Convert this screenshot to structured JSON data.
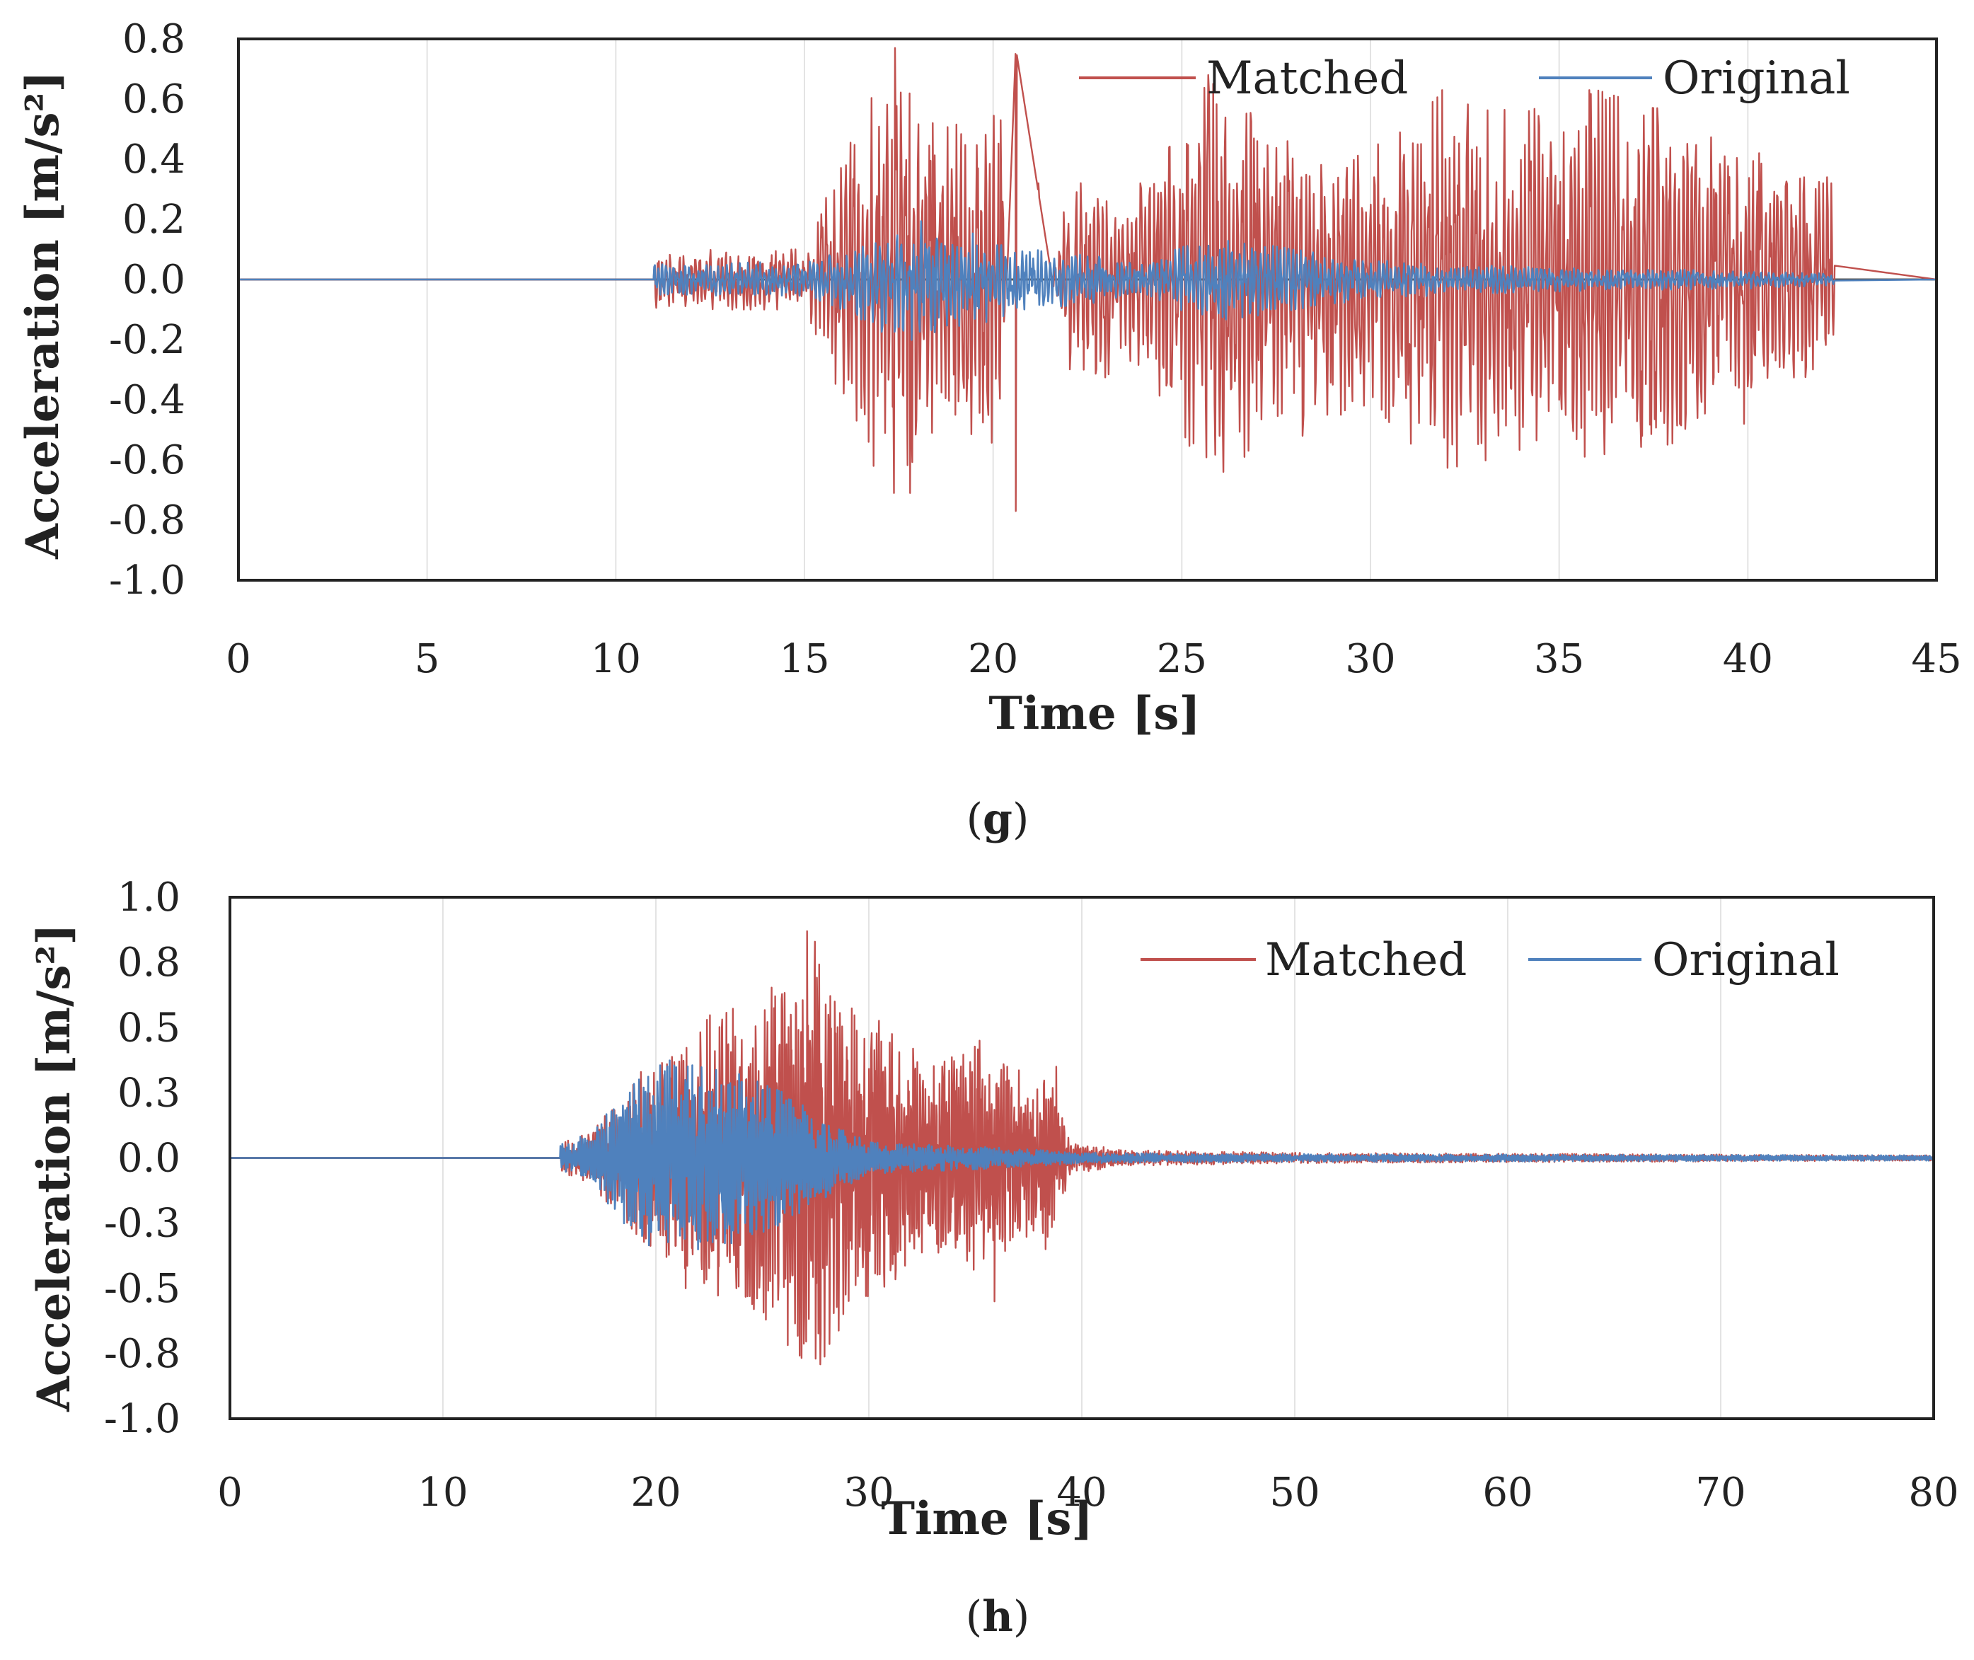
{
  "figure": {
    "panels": [
      "(g)",
      "(h)"
    ]
  },
  "chart_data": [
    {
      "id": "g",
      "type": "line",
      "panel_label": "(g)",
      "panel_letter": "g",
      "title": "",
      "xlabel": "Time [s]",
      "ylabel": "Acceleration [m/s²]",
      "xlim": [
        0,
        45
      ],
      "ylim": [
        -1.0,
        0.8
      ],
      "xticks": [
        0,
        5,
        10,
        15,
        20,
        25,
        30,
        35,
        40,
        45
      ],
      "xtick_labels": [
        "0",
        "5",
        "10",
        "15",
        "20",
        "25",
        "30",
        "35",
        "40",
        "45"
      ],
      "yticks": [
        0.8,
        0.6,
        0.4,
        0.2,
        0.0,
        -0.2,
        -0.4,
        -0.6,
        -0.8,
        -1.0
      ],
      "ytick_labels": [
        "0.8",
        "0.6",
        "0.4",
        "0.2",
        "0.0",
        "-0.2",
        "-0.4",
        "-0.6",
        "-0.8",
        "-1.0"
      ],
      "grid": "vertical",
      "legend_position": "top-right",
      "signal_start": 11,
      "signal_end": 42.3,
      "series": [
        {
          "name": "Matched",
          "color": "#c0504d",
          "envelope": [
            [
              11,
              0.1
            ],
            [
              15,
              0.1
            ],
            [
              16,
              0.4
            ],
            [
              17.4,
              0.77
            ],
            [
              18.5,
              0.5
            ],
            [
              20.2,
              0.55
            ],
            [
              20.6,
              -0.77
            ],
            [
              22,
              0.35
            ],
            [
              24,
              0.3
            ],
            [
              25.8,
              0.68
            ],
            [
              28,
              0.45
            ],
            [
              30,
              0.45
            ],
            [
              32,
              0.63
            ],
            [
              35,
              0.55
            ],
            [
              36,
              0.63
            ],
            [
              38,
              0.55
            ],
            [
              40,
              0.4
            ],
            [
              42,
              0.32
            ]
          ],
          "peaks": [
            {
              "t": 16.1,
              "v": 0.38
            },
            {
              "t": 16.7,
              "v": -0.54
            },
            {
              "t": 17.4,
              "v": 0.77
            },
            {
              "t": 17.8,
              "v": -0.71
            },
            {
              "t": 18.4,
              "v": 0.52
            },
            {
              "t": 19.0,
              "v": -0.45
            },
            {
              "t": 19.6,
              "v": 0.37
            },
            {
              "t": 20.2,
              "v": 0.53
            },
            {
              "t": 20.6,
              "v": -0.77
            },
            {
              "t": 21.2,
              "v": 0.32
            },
            {
              "t": 22.4,
              "v": -0.3
            },
            {
              "t": 23.9,
              "v": 0.32
            },
            {
              "t": 24.7,
              "v": -0.35
            },
            {
              "t": 25.7,
              "v": 0.68
            },
            {
              "t": 26.0,
              "v": -0.52
            },
            {
              "t": 27.0,
              "v": 0.46
            },
            {
              "t": 27.8,
              "v": 0.46
            },
            {
              "t": 28.2,
              "v": -0.52
            },
            {
              "t": 29.0,
              "v": -0.35
            },
            {
              "t": 30.2,
              "v": 0.45
            },
            {
              "t": 31.0,
              "v": -0.35
            },
            {
              "t": 31.9,
              "v": 0.63
            },
            {
              "t": 32.4,
              "v": -0.45
            },
            {
              "t": 33.5,
              "v": -0.43
            },
            {
              "t": 34.2,
              "v": 0.56
            },
            {
              "t": 35.0,
              "v": -0.4
            },
            {
              "t": 35.8,
              "v": 0.63
            },
            {
              "t": 37.2,
              "v": -0.52
            },
            {
              "t": 37.6,
              "v": 0.57
            },
            {
              "t": 38.2,
              "v": -0.48
            },
            {
              "t": 39.1,
              "v": 0.3
            },
            {
              "t": 39.9,
              "v": -0.48
            },
            {
              "t": 40.3,
              "v": 0.42
            },
            {
              "t": 41.0,
              "v": 0.31
            },
            {
              "t": 42.1,
              "v": 0.34
            }
          ]
        },
        {
          "name": "Original",
          "color": "#4f81bd",
          "envelope": [
            [
              11,
              0.05
            ],
            [
              15,
              0.06
            ],
            [
              16,
              0.1
            ],
            [
              17.5,
              0.21
            ],
            [
              19,
              0.17
            ],
            [
              21,
              0.1
            ],
            [
              24,
              0.06
            ],
            [
              25.7,
              0.14
            ],
            [
              27,
              0.12
            ],
            [
              29,
              0.08
            ],
            [
              32,
              0.05
            ],
            [
              35,
              0.04
            ],
            [
              40,
              0.03
            ],
            [
              42,
              0.02
            ]
          ],
          "peaks": []
        }
      ]
    },
    {
      "id": "h",
      "type": "line",
      "panel_label": "(h)",
      "panel_letter": "h",
      "title": "",
      "xlabel": "Time [s]",
      "ylabel": "Acceleration [m/s²]",
      "xlim": [
        0,
        80
      ],
      "ylim": [
        -1.0,
        1.0
      ],
      "xticks": [
        0,
        10,
        20,
        30,
        40,
        50,
        60,
        70,
        80
      ],
      "xtick_labels": [
        "0",
        "10",
        "20",
        "30",
        "40",
        "50",
        "60",
        "70",
        "80"
      ],
      "yticks": [
        1.0,
        0.75,
        0.5,
        0.25,
        0.0,
        -0.25,
        -0.5,
        -0.75,
        -1.0
      ],
      "ytick_labels": [
        "1.0",
        "0.8",
        "0.5",
        "0.3",
        "0.0",
        "-0.3",
        "-0.5",
        "-0.8",
        "-1.0"
      ],
      "grid": "vertical",
      "legend_position": "top-right",
      "signal_start": 15.5,
      "signal_end": 80,
      "series": [
        {
          "name": "Matched",
          "color": "#c0504d",
          "envelope": [
            [
              15.5,
              0.05
            ],
            [
              17.5,
              0.15
            ],
            [
              19,
              0.3
            ],
            [
              21,
              0.4
            ],
            [
              22.5,
              0.55
            ],
            [
              25,
              0.6
            ],
            [
              27.2,
              0.87
            ],
            [
              29,
              0.6
            ],
            [
              31,
              0.5
            ],
            [
              33,
              0.35
            ],
            [
              35,
              0.45
            ],
            [
              36.5,
              0.35
            ],
            [
              38.5,
              0.3
            ],
            [
              39.5,
              0.06
            ],
            [
              42,
              0.03
            ],
            [
              50,
              0.02
            ],
            [
              80,
              0.01
            ]
          ],
          "peaks": [
            {
              "t": 19.3,
              "v": 0.33
            },
            {
              "t": 20.5,
              "v": -0.38
            },
            {
              "t": 21.4,
              "v": -0.5
            },
            {
              "t": 22.4,
              "v": 0.53
            },
            {
              "t": 23.8,
              "v": -0.42
            },
            {
              "t": 24.6,
              "v": -0.58
            },
            {
              "t": 25.6,
              "v": 0.62
            },
            {
              "t": 27.1,
              "v": 0.87
            },
            {
              "t": 27.5,
              "v": -0.77
            },
            {
              "t": 28.4,
              "v": 0.6
            },
            {
              "t": 29.2,
              "v": -0.35
            },
            {
              "t": 30.1,
              "v": 0.4
            },
            {
              "t": 31.2,
              "v": -0.37
            },
            {
              "t": 32.4,
              "v": 0.32
            },
            {
              "t": 33.2,
              "v": -0.33
            },
            {
              "t": 35.2,
              "v": 0.45
            },
            {
              "t": 35.9,
              "v": -0.55
            },
            {
              "t": 36.5,
              "v": 0.35
            },
            {
              "t": 38.3,
              "v": -0.35
            },
            {
              "t": 38.8,
              "v": 0.35
            }
          ]
        },
        {
          "name": "Original",
          "color": "#4f81bd",
          "envelope": [
            [
              15.5,
              0.05
            ],
            [
              17,
              0.1
            ],
            [
              18.5,
              0.25
            ],
            [
              20.3,
              0.38
            ],
            [
              22,
              0.35
            ],
            [
              24,
              0.32
            ],
            [
              26,
              0.25
            ],
            [
              28,
              0.15
            ],
            [
              30,
              0.06
            ],
            [
              33,
              0.05
            ],
            [
              36,
              0.04
            ],
            [
              40,
              0.02
            ],
            [
              50,
              0.015
            ],
            [
              80,
              0.01
            ]
          ],
          "peaks": []
        }
      ]
    }
  ]
}
